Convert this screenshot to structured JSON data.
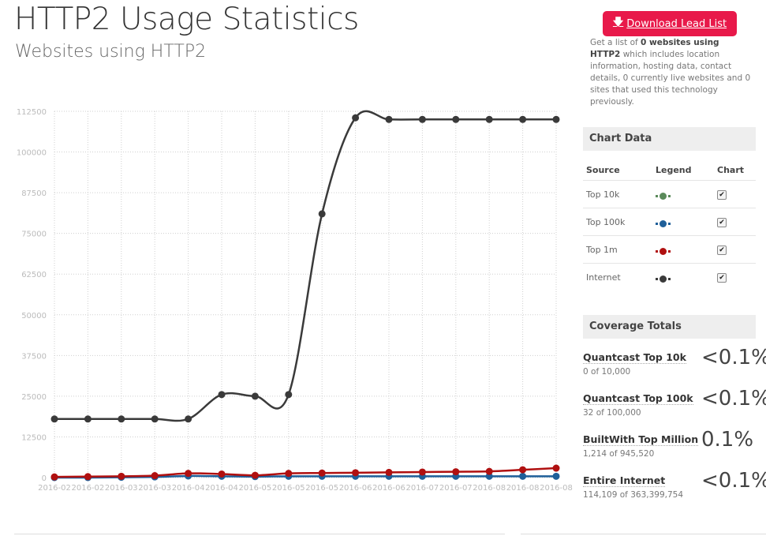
{
  "header": {
    "title": "HTTP2 Usage Statistics",
    "subtitle": "Websites using HTTP2"
  },
  "lead": {
    "button_label": "Download Lead List",
    "desc_pre": "Get a list of ",
    "desc_bold": "0 websites using HTTP2",
    "desc_post": " which includes location information, hosting data, contact details, 0 currently live websites and 0 sites that used this technology previously."
  },
  "chart_panel": {
    "heading": "Chart Data",
    "columns": [
      "Source",
      "Legend",
      "Chart"
    ],
    "rows": [
      {
        "source": "Top 10k",
        "color": "#5a8a5a",
        "checked": true
      },
      {
        "source": "Top 100k",
        "color": "#1f5f99",
        "checked": true
      },
      {
        "source": "Top 1m",
        "color": "#b01010",
        "checked": true
      },
      {
        "source": "Internet",
        "color": "#3a3a3a",
        "checked": true
      }
    ]
  },
  "coverage": {
    "heading": "Coverage Totals",
    "items": [
      {
        "name": "Quantcast Top 10k",
        "sub": "0 of 10,000",
        "pct": "<0.1%"
      },
      {
        "name": "Quantcast Top 100k",
        "sub": "32 of 100,000",
        "pct": "<0.1%"
      },
      {
        "name": "BuiltWith Top Million",
        "sub": "1,214 of 945,520",
        "pct": "0.1%"
      },
      {
        "name": "Entire Internet",
        "sub": "114,109 of 363,399,754",
        "pct": "<0.1%"
      }
    ]
  },
  "chart_data": {
    "type": "line",
    "ylim": [
      0,
      112500
    ],
    "yticks": [
      "0",
      "12500",
      "25000",
      "37500",
      "50000",
      "62500",
      "75000",
      "87500",
      "100000",
      "112500"
    ],
    "xticks": [
      "2016-02",
      "2016-02",
      "2016-03",
      "2016-03",
      "2016-04",
      "2016-04",
      "2016-05",
      "2016-05",
      "2016-05",
      "2016-06",
      "2016-06",
      "2016-07",
      "2016-07",
      "2016-08",
      "2016-08",
      "2016-08"
    ],
    "grid": true,
    "series": [
      {
        "color": "#3a3a3a",
        "values": [
          18000,
          18000,
          18000,
          18000,
          18000,
          25500,
          25000,
          25500,
          81000,
          110500,
          110000,
          110000,
          110000,
          110000,
          110000,
          110000
        ]
      },
      {
        "color": "#1f5f99",
        "values": [
          0,
          0,
          100,
          200,
          500,
          400,
          300,
          400,
          400,
          400,
          400,
          400,
          400,
          400,
          400,
          400
        ]
      },
      {
        "color": "#b01010",
        "values": [
          200,
          300,
          400,
          600,
          1300,
          1100,
          700,
          1300,
          1400,
          1500,
          1600,
          1700,
          1800,
          1900,
          2400,
          2900
        ]
      }
    ]
  }
}
